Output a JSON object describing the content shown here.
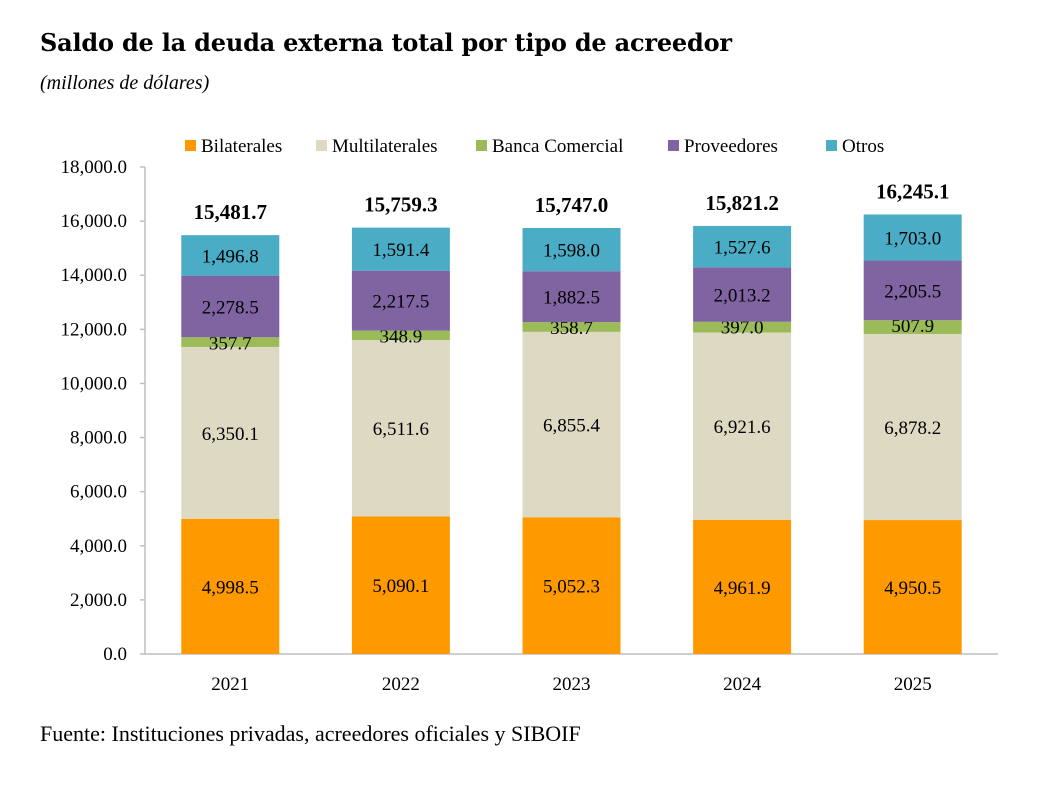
{
  "title": "Saldo de la deuda externa total por tipo de acreedor",
  "subtitle": "(millones de dólares)",
  "source": "Fuente: Instituciones privadas, acreedores oficiales y SIBOIF",
  "chart_data": {
    "type": "bar",
    "stacked": true,
    "categories": [
      "2021",
      "2022",
      "2023",
      "2024",
      "2025"
    ],
    "series": [
      {
        "name": "Bilaterales",
        "color": "#FF9900",
        "values": [
          4998.5,
          5090.1,
          5052.3,
          4961.9,
          4950.5
        ],
        "labels": [
          "4,998.5",
          "5,090.1",
          "5,052.3",
          "4,961.9",
          "4,950.5"
        ]
      },
      {
        "name": "Multilaterales",
        "color": "#DDD9C3",
        "values": [
          6350.1,
          6511.6,
          6855.4,
          6921.6,
          6878.2
        ],
        "labels": [
          "6,350.1",
          "6,511.6",
          "6,855.4",
          "6,921.6",
          "6,878.2"
        ]
      },
      {
        "name": "Banca Comercial",
        "color": "#9BBB59",
        "values": [
          357.7,
          348.9,
          358.7,
          397.0,
          507.9
        ],
        "labels": [
          "357.7",
          "348.9",
          "358.7",
          "397.0",
          "507.9"
        ]
      },
      {
        "name": "Proveedores",
        "color": "#8064A2",
        "values": [
          2278.5,
          2217.5,
          1882.5,
          2013.2,
          2205.5
        ],
        "labels": [
          "2,278.5",
          "2,217.5",
          "1,882.5",
          "2,013.2",
          "2,205.5"
        ]
      },
      {
        "name": "Otros",
        "color": "#4BACC6",
        "values": [
          1496.8,
          1591.4,
          1598.0,
          1527.6,
          1703.0
        ],
        "labels": [
          "1,496.8",
          "1,591.4",
          "1,598.0",
          "1,527.6",
          "1,703.0"
        ]
      }
    ],
    "totals": [
      "15,481.7",
      "15,759.3",
      "15,747.0",
      "15,821.2",
      "16,245.1"
    ],
    "ylim": [
      0,
      18000
    ],
    "yticks": [
      "0.0",
      "2,000.0",
      "4,000.0",
      "6,000.0",
      "8,000.0",
      "10,000.0",
      "12,000.0",
      "14,000.0",
      "16,000.0",
      "18,000.0"
    ],
    "grid": false,
    "legend": "top"
  }
}
